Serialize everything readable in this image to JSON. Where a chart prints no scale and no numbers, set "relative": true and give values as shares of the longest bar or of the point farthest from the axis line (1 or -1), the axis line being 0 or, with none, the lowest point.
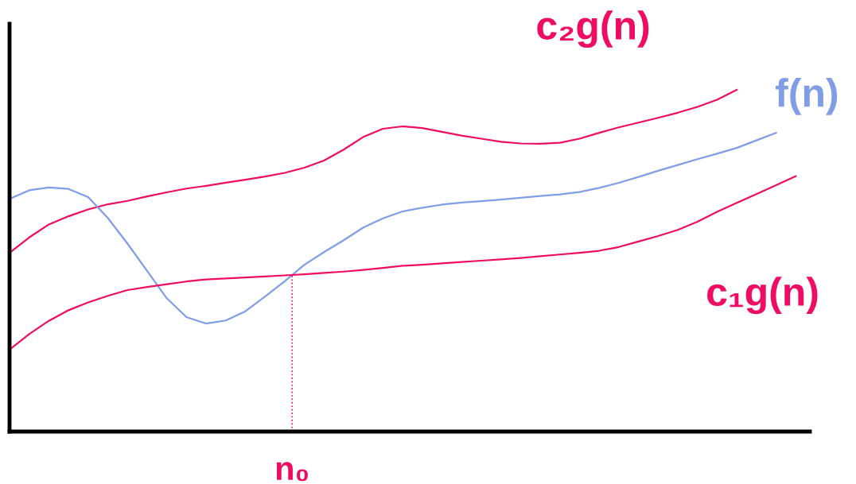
{
  "chart_data": {
    "type": "line",
    "relative": true,
    "marker": "none",
    "line_style": "solid",
    "categories": [
      null,
      null,
      null,
      null,
      null,
      null,
      null,
      null,
      null,
      null,
      null,
      null,
      null,
      null,
      null,
      null,
      null,
      null,
      null,
      null,
      null,
      null,
      null,
      null,
      null,
      null,
      null,
      null,
      null,
      null,
      null,
      null,
      null,
      null,
      null,
      null,
      null,
      null,
      null,
      null,
      null
    ],
    "series": [
      {
        "name": "c₂g(n)",
        "color": "#ee0d62",
        "values": [
          0.523,
          0.568,
          0.606,
          0.63,
          0.65,
          0.665,
          0.675,
          0.688,
          0.7,
          0.711,
          0.719,
          0.728,
          0.737,
          0.746,
          0.757,
          0.772,
          0.793,
          0.825,
          0.862,
          0.886,
          0.893,
          0.888,
          0.877,
          0.866,
          0.857,
          0.848,
          0.843,
          0.842,
          0.845,
          0.857,
          0.874,
          0.89,
          0.904,
          0.918,
          0.933,
          0.95,
          0.971,
          1.0,
          null,
          null,
          null
        ]
      },
      {
        "name": "f(n)",
        "color": "#7f9ee6",
        "values": [
          0.681,
          0.706,
          0.714,
          0.71,
          0.686,
          0.625,
          0.55,
          0.47,
          0.39,
          0.335,
          0.316,
          0.325,
          0.352,
          0.395,
          0.44,
          0.488,
          0.525,
          0.56,
          0.597,
          0.624,
          0.644,
          0.655,
          0.664,
          0.67,
          0.674,
          0.679,
          0.684,
          0.689,
          0.694,
          0.701,
          0.713,
          0.728,
          0.745,
          0.763,
          0.78,
          0.797,
          0.813,
          0.83,
          0.852,
          0.874,
          null
        ]
      },
      {
        "name": "c₁g(n)",
        "color": "#ee0d62",
        "values": [
          0.24,
          0.285,
          0.324,
          0.355,
          0.378,
          0.397,
          0.414,
          0.423,
          0.431,
          0.439,
          0.445,
          0.448,
          0.451,
          0.454,
          0.457,
          0.46,
          0.464,
          0.468,
          0.473,
          0.479,
          0.485,
          0.488,
          0.492,
          0.496,
          0.5,
          0.504,
          0.508,
          0.513,
          0.518,
          0.523,
          0.529,
          0.54,
          0.556,
          0.572,
          0.59,
          0.614,
          0.643,
          0.669,
          0.695,
          0.721,
          0.747
        ]
      }
    ],
    "annotations": [
      "n₀"
    ]
  }
}
